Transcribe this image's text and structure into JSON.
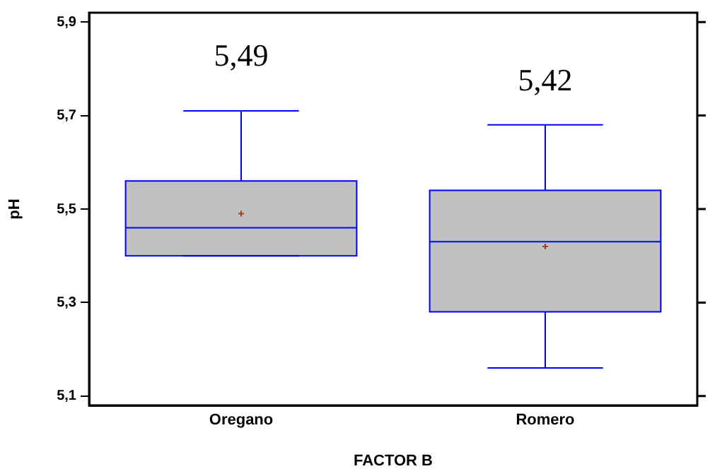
{
  "chart_data": {
    "type": "box",
    "xlabel": "FACTOR B",
    "ylabel": "pH",
    "categories": [
      "Oregano",
      "Romero"
    ],
    "series": [
      {
        "color": "#c0c0c0",
        "boxes": [
          {
            "low": 5.4,
            "q1": 5.4,
            "median": 5.46,
            "q3": 5.56,
            "high": 5.71,
            "mean": 5.49
          },
          {
            "low": 5.16,
            "q1": 5.28,
            "median": 5.43,
            "q3": 5.54,
            "high": 5.68,
            "mean": 5.42
          }
        ]
      }
    ],
    "ylim": [
      5.08,
      5.92
    ],
    "yticks": [
      {
        "value": 5.1,
        "label": "5,1"
      },
      {
        "value": 5.3,
        "label": "5,3"
      },
      {
        "value": 5.5,
        "label": "5,5"
      },
      {
        "value": 5.7,
        "label": "5,7"
      },
      {
        "value": 5.9,
        "label": "5,9"
      }
    ],
    "annotations": [
      "5,49",
      "5,42"
    ],
    "grid": false,
    "legend": false
  }
}
